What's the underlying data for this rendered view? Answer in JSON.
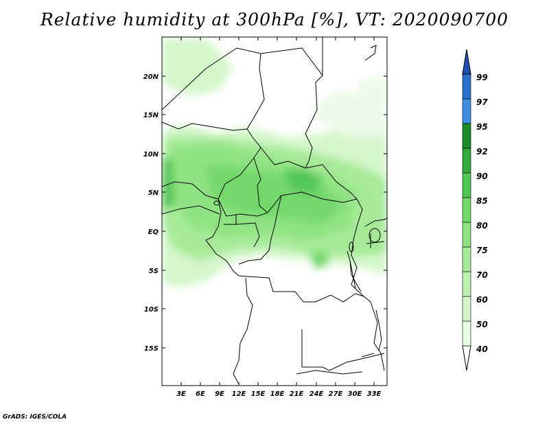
{
  "title": "Relative humidity at 300hPa [%], VT: 2020090700",
  "credit": "GrADS: IGES/COLA",
  "map": {
    "lat_labels": [
      "20N",
      "15N",
      "10N",
      "5N",
      "EQ",
      "5S",
      "10S",
      "15S"
    ],
    "lon_labels": [
      "3E",
      "6E",
      "9E",
      "12E",
      "15E",
      "18E",
      "21E",
      "24E",
      "27E",
      "30E",
      "33E"
    ]
  },
  "colorbar": {
    "levels": [
      "40",
      "50",
      "60",
      "70",
      "75",
      "80",
      "85",
      "90",
      "92",
      "95",
      "97",
      "99"
    ],
    "colors": [
      "#ffffff",
      "#e9fbe5",
      "#d4f6cb",
      "#bdf0b1",
      "#a6ea98",
      "#8fe281",
      "#72d86a",
      "#52c655",
      "#33a83d",
      "#1a8c2b",
      "#3d8fe0",
      "#2c70cc",
      "#1f4fb0"
    ]
  }
}
